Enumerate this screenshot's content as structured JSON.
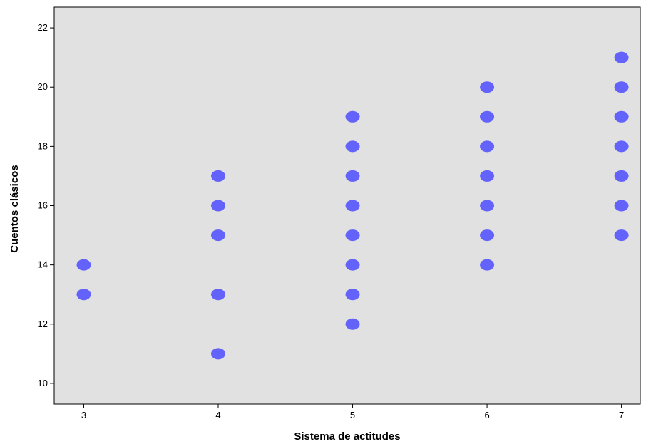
{
  "chart_data": {
    "type": "scatter",
    "title": "",
    "xlabel": "Sistema de actitudes",
    "ylabel": "Cuentos clásicos",
    "xlim": [
      2.78,
      7.14
    ],
    "ylim": [
      9.3,
      22.7
    ],
    "xticks": [
      3,
      4,
      5,
      6,
      7
    ],
    "yticks": [
      10,
      12,
      14,
      16,
      18,
      20,
      22
    ],
    "grid": false,
    "legend": "none",
    "points": [
      {
        "x": 3,
        "y": 13
      },
      {
        "x": 3,
        "y": 14
      },
      {
        "x": 4,
        "y": 11
      },
      {
        "x": 4,
        "y": 13
      },
      {
        "x": 4,
        "y": 15
      },
      {
        "x": 4,
        "y": 16
      },
      {
        "x": 4,
        "y": 17
      },
      {
        "x": 5,
        "y": 12
      },
      {
        "x": 5,
        "y": 13
      },
      {
        "x": 5,
        "y": 14
      },
      {
        "x": 5,
        "y": 15
      },
      {
        "x": 5,
        "y": 16
      },
      {
        "x": 5,
        "y": 17
      },
      {
        "x": 5,
        "y": 18
      },
      {
        "x": 5,
        "y": 19
      },
      {
        "x": 6,
        "y": 14
      },
      {
        "x": 6,
        "y": 15
      },
      {
        "x": 6,
        "y": 16
      },
      {
        "x": 6,
        "y": 17
      },
      {
        "x": 6,
        "y": 18
      },
      {
        "x": 6,
        "y": 19
      },
      {
        "x": 6,
        "y": 20
      },
      {
        "x": 7,
        "y": 15
      },
      {
        "x": 7,
        "y": 16
      },
      {
        "x": 7,
        "y": 17
      },
      {
        "x": 7,
        "y": 18
      },
      {
        "x": 7,
        "y": 19
      },
      {
        "x": 7,
        "y": 20
      },
      {
        "x": 7,
        "y": 21
      }
    ]
  },
  "colors": {
    "plot_background": "#e1e1e1",
    "marker": "#6363fb",
    "axis": "#000000"
  }
}
